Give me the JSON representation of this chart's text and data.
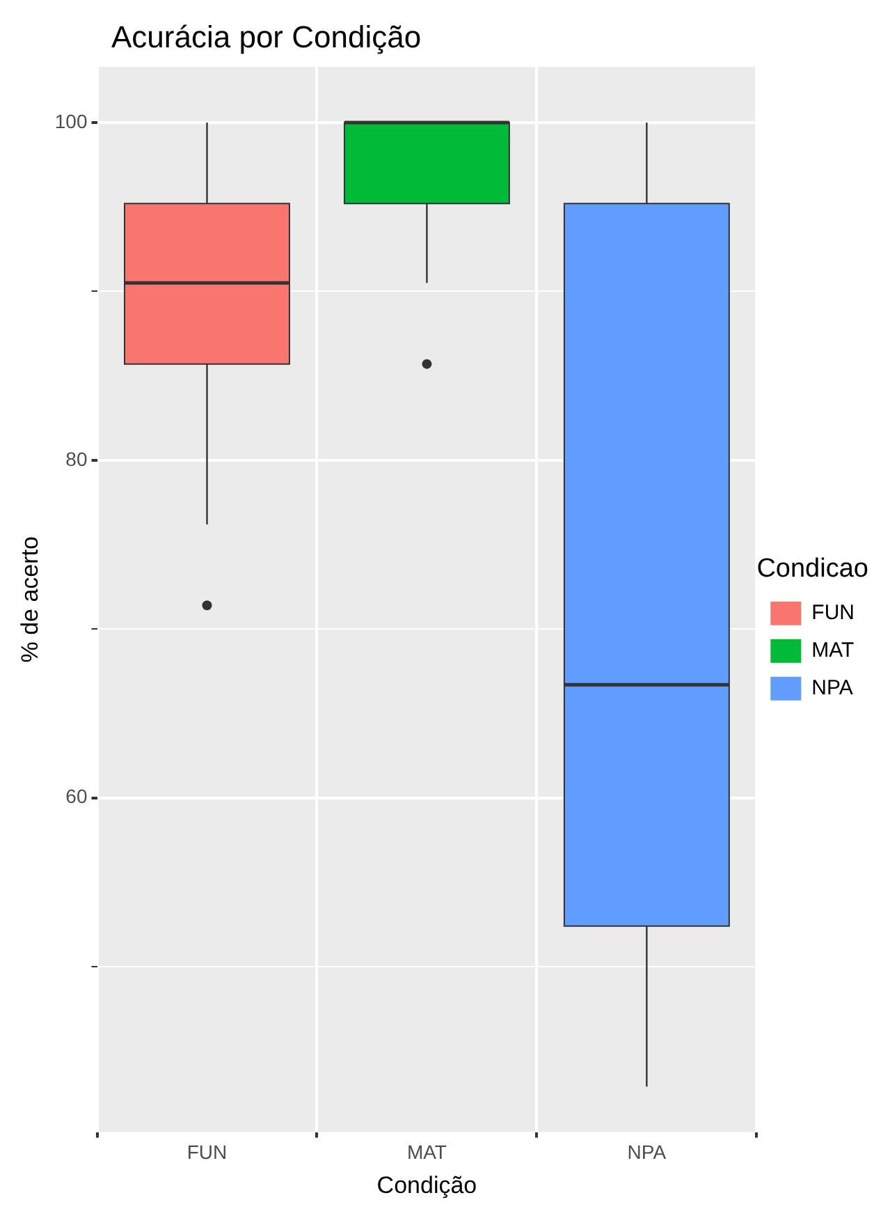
{
  "chart_data": {
    "type": "box",
    "title": "Acurácia por Condição",
    "xlabel": "Condição",
    "ylabel": "% de acerto",
    "legend_title": "Condicao",
    "categories": [
      "FUN",
      "MAT",
      "NPA"
    ],
    "series": [
      {
        "name": "FUN",
        "color": "#f8766d",
        "boxes": [
          {
            "low": 76.2,
            "q1": 85.7,
            "median": 90.5,
            "q3": 95.2,
            "high": 100,
            "outliers": [
              71.4
            ]
          },
          null,
          null
        ]
      },
      {
        "name": "MAT",
        "color": "#00ba38",
        "boxes": [
          null,
          {
            "low": 90.5,
            "q1": 95.2,
            "median": 100,
            "q3": 100,
            "high": 100,
            "outliers": [
              85.7
            ]
          },
          null
        ]
      },
      {
        "name": "NPA",
        "color": "#619cff",
        "boxes": [
          null,
          null,
          {
            "low": 42.9,
            "q1": 52.4,
            "median": 66.7,
            "q3": 95.2,
            "high": 100
          }
        ]
      }
    ],
    "ylim": [
      40.2,
      103.3
    ],
    "yticks": [
      {
        "value": 50,
        "label": null
      },
      60,
      {
        "value": 70,
        "label": null
      },
      80,
      {
        "value": 90,
        "label": null
      },
      100
    ],
    "grid": true,
    "legend": "right"
  }
}
